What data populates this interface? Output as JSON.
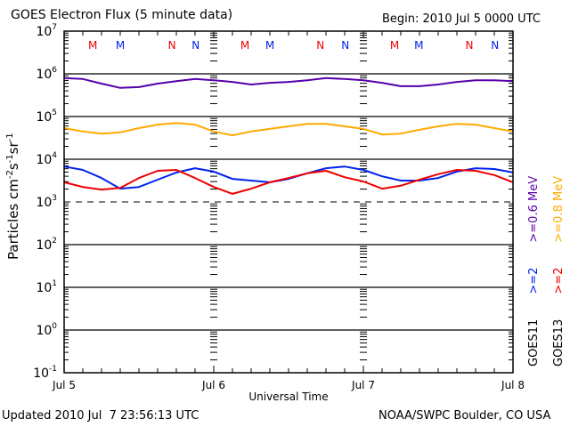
{
  "chart_data": {
    "type": "line",
    "title": "GOES Electron Flux (5 minute data)",
    "begin_label": "Begin: 2010 Jul 5 0000 UTC",
    "xlabel": "Universal Time",
    "ylabel_parts": {
      "base": "Particles cm",
      "e1": "-2",
      "mid": "s",
      "e2": "-1",
      "tail": "sr",
      "e3": "-1"
    },
    "x_unit": "hours since 2010 Jul 5 0000 UTC",
    "xlim": [
      0,
      72
    ],
    "x_ticks": [
      {
        "hour": 0,
        "label": "Jul 5"
      },
      {
        "hour": 24,
        "label": "Jul 6"
      },
      {
        "hour": 48,
        "label": "Jul 7"
      },
      {
        "hour": 72,
        "label": "Jul 8"
      }
    ],
    "y_scale": "log",
    "ylim_log10": [
      -1,
      7
    ],
    "y_ticks": [
      {
        "base": "10",
        "exp": "7",
        "log": 7
      },
      {
        "base": "10",
        "exp": "6",
        "log": 6
      },
      {
        "base": "10",
        "exp": "5",
        "log": 5
      },
      {
        "base": "10",
        "exp": "4",
        "log": 4
      },
      {
        "base": "10",
        "exp": "3",
        "log": 3
      },
      {
        "base": "10",
        "exp": "2",
        "log": 2
      },
      {
        "base": "10",
        "exp": "1",
        "log": 1
      },
      {
        "base": "10",
        "exp": "0",
        "log": 0
      },
      {
        "base": "10",
        "exp": "-1",
        "log": -1
      }
    ],
    "threshold_log10": 3,
    "x": [
      0,
      3,
      6,
      9,
      12,
      15,
      18,
      21,
      24,
      27,
      30,
      33,
      36,
      39,
      42,
      45,
      48,
      51,
      54,
      57,
      60,
      63,
      66,
      69,
      72
    ],
    "series": [
      {
        "name": "GOES11 >=0.6 MeV",
        "color": "#5500aa",
        "log10_values": [
          5.9,
          5.88,
          5.77,
          5.67,
          5.69,
          5.77,
          5.83,
          5.88,
          5.85,
          5.81,
          5.75,
          5.79,
          5.81,
          5.85,
          5.9,
          5.88,
          5.85,
          5.79,
          5.71,
          5.71,
          5.75,
          5.81,
          5.85,
          5.85,
          5.83
        ]
      },
      {
        "name": "GOES13 >=0.8 MeV",
        "color": "#ffaa00",
        "log10_values": [
          4.73,
          4.65,
          4.6,
          4.63,
          4.73,
          4.81,
          4.85,
          4.81,
          4.65,
          4.56,
          4.65,
          4.71,
          4.77,
          4.83,
          4.83,
          4.77,
          4.71,
          4.58,
          4.6,
          4.69,
          4.77,
          4.83,
          4.81,
          4.73,
          4.65
        ]
      },
      {
        "name": "GOES11 >=2 MeV",
        "color": "#0022ee",
        "log10_values": [
          3.83,
          3.75,
          3.56,
          3.31,
          3.35,
          3.52,
          3.69,
          3.79,
          3.71,
          3.54,
          3.5,
          3.46,
          3.54,
          3.67,
          3.79,
          3.83,
          3.75,
          3.6,
          3.5,
          3.5,
          3.56,
          3.71,
          3.79,
          3.77,
          3.69
        ]
      },
      {
        "name": "GOES13 >=2 MeV",
        "color": "#ee0000",
        "log10_values": [
          3.46,
          3.35,
          3.29,
          3.33,
          3.56,
          3.73,
          3.75,
          3.56,
          3.35,
          3.19,
          3.31,
          3.46,
          3.56,
          3.67,
          3.73,
          3.58,
          3.48,
          3.31,
          3.38,
          3.52,
          3.65,
          3.75,
          3.73,
          3.63,
          3.46
        ]
      }
    ],
    "event_markers": [
      {
        "label": "M",
        "color": "#ee0000",
        "hour": 4.6
      },
      {
        "label": "M",
        "color": "#0022ee",
        "hour": 9.0
      },
      {
        "label": "N",
        "color": "#ee0000",
        "hour": 17.3
      },
      {
        "label": "N",
        "color": "#0022ee",
        "hour": 21.1
      },
      {
        "label": "M",
        "color": "#ee0000",
        "hour": 29.0
      },
      {
        "label": "M",
        "color": "#0022ee",
        "hour": 33.0
      },
      {
        "label": "N",
        "color": "#ee0000",
        "hour": 41.1
      },
      {
        "label": "N",
        "color": "#0022ee",
        "hour": 45.1
      },
      {
        "label": "M",
        "color": "#ee0000",
        "hour": 53.0
      },
      {
        "label": "M",
        "color": "#0022ee",
        "hour": 56.9
      },
      {
        "label": "N",
        "color": "#ee0000",
        "hour": 65.0
      },
      {
        "label": "N",
        "color": "#0022ee",
        "hour": 69.1
      }
    ],
    "legend": {
      "placement": "right",
      "columns": [
        {
          "sat": "GOES11",
          "sat_color": "#000000",
          "e1": ">=2",
          "e1_color": "#0022ee",
          "e2": ">=0.6 MeV",
          "e2_color": "#5500aa"
        },
        {
          "sat": "GOES13",
          "sat_color": "#000000",
          "e1": ">=2",
          "e1_color": "#ee0000",
          "e2": ">=0.8 MeV",
          "e2_color": "#ffaa00"
        }
      ]
    },
    "grid": "horizontal at each decade"
  },
  "footer": {
    "updated": "Updated 2010 Jul  7 23:56:13 UTC",
    "credit": "NOAA/SWPC Boulder, CO USA"
  }
}
